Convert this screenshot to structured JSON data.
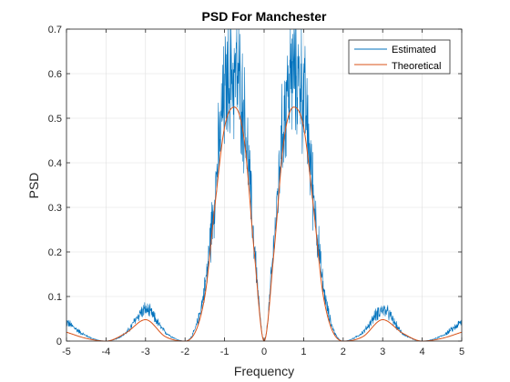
{
  "chart_data": {
    "type": "line",
    "title": "PSD For Manchester",
    "xlabel": "Frequency",
    "ylabel": "PSD",
    "xlim": [
      -5,
      5
    ],
    "ylim": [
      0,
      0.7
    ],
    "x_ticks": [
      -5,
      -4,
      -3,
      -2,
      -1,
      0,
      1,
      2,
      3,
      4,
      5
    ],
    "x_tick_labels": [
      "-5",
      "-4",
      "-3",
      "-2",
      "-1",
      "0",
      "1",
      "2",
      "3",
      "4",
      "5"
    ],
    "y_ticks": [
      0,
      0.1,
      0.2,
      0.3,
      0.4,
      0.5,
      0.6,
      0.7
    ],
    "y_tick_labels": [
      "0",
      "0.1",
      "0.2",
      "0.3",
      "0.4",
      "0.5",
      "0.6",
      "0.7"
    ],
    "grid": true,
    "legend_position": "top-right",
    "series": [
      {
        "name": "Estimated",
        "color": "#0072BD",
        "style": "noisy",
        "x": [
          -5,
          -4.5,
          -4,
          -3.5,
          -3,
          -2.5,
          -2,
          -1.5,
          -1.25,
          -1,
          -0.75,
          -0.5,
          -0.25,
          0,
          0.25,
          0.5,
          0.75,
          1,
          1.25,
          1.5,
          2,
          2.5,
          3,
          3.5,
          4,
          4.5,
          5
        ],
        "y": [
          0.043,
          0.012,
          0,
          0.018,
          0.07,
          0.02,
          0,
          0.12,
          0.33,
          0.55,
          0.6,
          0.5,
          0.22,
          0,
          0.22,
          0.5,
          0.6,
          0.55,
          0.33,
          0.12,
          0,
          0.02,
          0.07,
          0.018,
          0,
          0.012,
          0.043
        ]
      },
      {
        "name": "Theoretical",
        "color": "#D95319",
        "style": "smooth",
        "x": [
          -5,
          -4.5,
          -4,
          -3.5,
          -3,
          -2.5,
          -2,
          -1.5,
          -1.25,
          -1,
          -0.75,
          -0.5,
          -0.25,
          0,
          0.25,
          0.5,
          0.75,
          1,
          1.25,
          1.5,
          2,
          2.5,
          3,
          3.5,
          4,
          4.5,
          5
        ],
        "y": [
          0.02,
          0.006,
          0,
          0.018,
          0.048,
          0.01,
          0,
          0.1,
          0.3,
          0.48,
          0.525,
          0.45,
          0.2,
          0,
          0.2,
          0.45,
          0.525,
          0.48,
          0.3,
          0.1,
          0,
          0.01,
          0.048,
          0.018,
          0,
          0.006,
          0.02
        ]
      }
    ]
  }
}
